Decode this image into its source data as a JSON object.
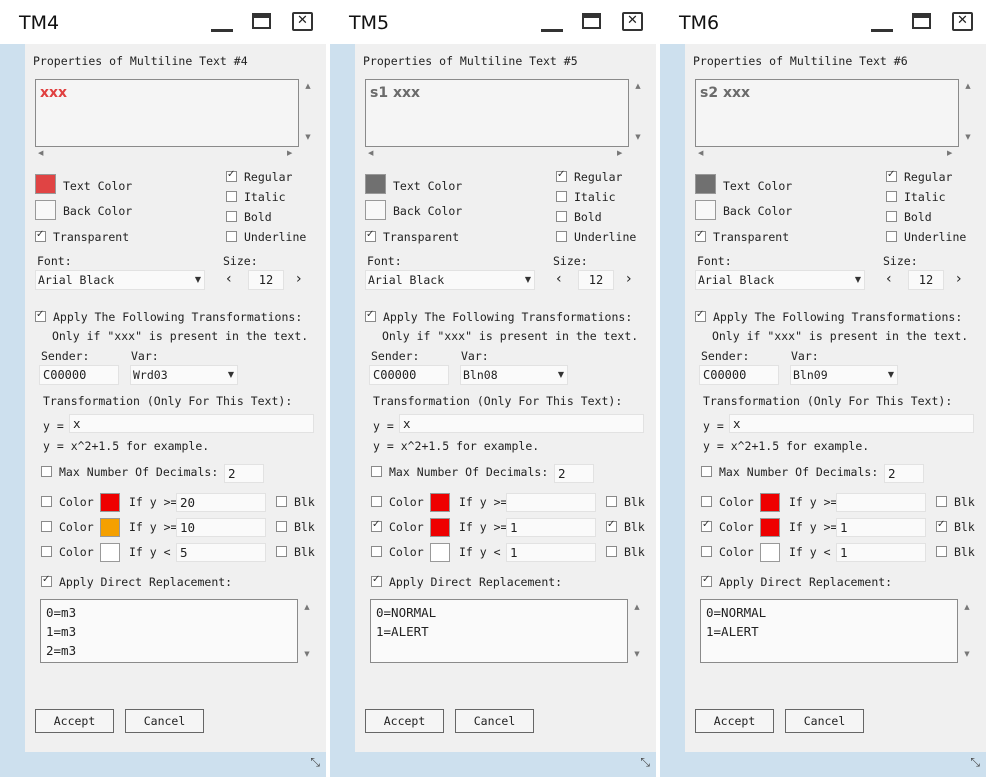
{
  "windows": [
    {
      "title": "TM4",
      "heading": "Properties of Multiline Text #4",
      "preview_text": "xxx",
      "preview_color": "#e04040",
      "text_color_label": "Text Color",
      "text_color": "#e04444",
      "back_color_label": "Back Color",
      "back_color": "#f8f8f8",
      "transparent_label": "Transparent",
      "transparent": true,
      "styles": [
        {
          "label": "Regular",
          "checked": true
        },
        {
          "label": "Italic",
          "checked": false
        },
        {
          "label": "Bold",
          "checked": false
        },
        {
          "label": "Underline",
          "checked": false
        }
      ],
      "font_label": "Font:",
      "font_value": "Arial Black",
      "size_label": "Size:",
      "size_value": "12",
      "size_prev": "‹",
      "size_next": "›",
      "apply_transform_label": "Apply The Following Transformations:",
      "apply_transform": true,
      "only_if_label": "Only if \"xxx\" is present in the text.",
      "sender_label": "Sender:",
      "sender_value": "C00000",
      "var_label": "Var:",
      "var_value": "Wrd03",
      "transformation_label": "Transformation (Only For This Text):",
      "y_label": "y =",
      "y_value": "x",
      "example_label": "y = x^2+1.5 for example.",
      "max_decimals_label": "Max Number Of Decimals:",
      "max_decimals": false,
      "max_decimals_value": "2",
      "color_rules": [
        {
          "color_label": "Color",
          "checked": false,
          "swatch": "#ee0000",
          "cond": "If y >=",
          "value": "20",
          "blk_label": "Blk",
          "blk": false
        },
        {
          "color_label": "Color",
          "checked": false,
          "swatch": "#f5a000",
          "cond": "If y >=",
          "value": "10",
          "blk_label": "Blk",
          "blk": false
        },
        {
          "color_label": "Color",
          "checked": false,
          "swatch": "#ffffff",
          "cond": "If y <",
          "value": "5",
          "blk_label": "Blk",
          "blk": false
        }
      ],
      "direct_replacement_label": "Apply Direct Replacement:",
      "direct_replacement": true,
      "replacement_lines": [
        "0=m3",
        "1=m3",
        "2=m3"
      ],
      "accept_label": "Accept",
      "cancel_label": "Cancel"
    },
    {
      "title": "TM5",
      "heading": "Properties of Multiline Text #5",
      "preview_text": "s1 xxx",
      "preview_color": "#6b6b6b",
      "text_color_label": "Text Color",
      "text_color": "#707070",
      "back_color_label": "Back Color",
      "back_color": "#f8f8f8",
      "transparent_label": "Transparent",
      "transparent": true,
      "styles": [
        {
          "label": "Regular",
          "checked": true
        },
        {
          "label": "Italic",
          "checked": false
        },
        {
          "label": "Bold",
          "checked": false
        },
        {
          "label": "Underline",
          "checked": false
        }
      ],
      "font_label": "Font:",
      "font_value": "Arial Black",
      "size_label": "Size:",
      "size_value": "12",
      "size_prev": "‹",
      "size_next": "›",
      "apply_transform_label": "Apply The Following Transformations:",
      "apply_transform": true,
      "only_if_label": "Only if \"xxx\" is present in the text.",
      "sender_label": "Sender:",
      "sender_value": "C00000",
      "var_label": "Var:",
      "var_value": "Bln08",
      "transformation_label": "Transformation (Only For This Text):",
      "y_label": "y =",
      "y_value": "x",
      "example_label": "y = x^2+1.5 for example.",
      "max_decimals_label": "Max Number Of Decimals:",
      "max_decimals": false,
      "max_decimals_value": "2",
      "color_rules": [
        {
          "color_label": "Color",
          "checked": false,
          "swatch": "#ee0000",
          "cond": "If y >=",
          "value": "",
          "blk_label": "Blk",
          "blk": false
        },
        {
          "color_label": "Color",
          "checked": true,
          "swatch": "#ee0000",
          "cond": "If y >=",
          "value": "1",
          "blk_label": "Blk",
          "blk": true
        },
        {
          "color_label": "Color",
          "checked": false,
          "swatch": "#ffffff",
          "cond": "If y <",
          "value": "1",
          "blk_label": "Blk",
          "blk": false
        }
      ],
      "direct_replacement_label": "Apply Direct Replacement:",
      "direct_replacement": true,
      "replacement_lines": [
        "0=NORMAL",
        "1=ALERT"
      ],
      "accept_label": "Accept",
      "cancel_label": "Cancel"
    },
    {
      "title": "TM6",
      "heading": "Properties of Multiline Text #6",
      "preview_text": "s2 xxx",
      "preview_color": "#6b6b6b",
      "text_color_label": "Text Color",
      "text_color": "#707070",
      "back_color_label": "Back Color",
      "back_color": "#f8f8f8",
      "transparent_label": "Transparent",
      "transparent": true,
      "styles": [
        {
          "label": "Regular",
          "checked": true
        },
        {
          "label": "Italic",
          "checked": false
        },
        {
          "label": "Bold",
          "checked": false
        },
        {
          "label": "Underline",
          "checked": false
        }
      ],
      "font_label": "Font:",
      "font_value": "Arial Black",
      "size_label": "Size:",
      "size_value": "12",
      "size_prev": "‹",
      "size_next": "›",
      "apply_transform_label": "Apply The Following Transformations:",
      "apply_transform": true,
      "only_if_label": "Only if \"xxx\" is present in the text.",
      "sender_label": "Sender:",
      "sender_value": "C00000",
      "var_label": "Var:",
      "var_value": "Bln09",
      "transformation_label": "Transformation (Only For This Text):",
      "y_label": "y =",
      "y_value": "x",
      "example_label": "y = x^2+1.5 for example.",
      "max_decimals_label": "Max Number Of Decimals:",
      "max_decimals": false,
      "max_decimals_value": "2",
      "color_rules": [
        {
          "color_label": "Color",
          "checked": false,
          "swatch": "#ee0000",
          "cond": "If y >=",
          "value": "",
          "blk_label": "Blk",
          "blk": false
        },
        {
          "color_label": "Color",
          "checked": true,
          "swatch": "#ee0000",
          "cond": "If y >=",
          "value": "1",
          "blk_label": "Blk",
          "blk": true
        },
        {
          "color_label": "Color",
          "checked": false,
          "swatch": "#ffffff",
          "cond": "If y <",
          "value": "1",
          "blk_label": "Blk",
          "blk": false
        }
      ],
      "direct_replacement_label": "Apply Direct Replacement:",
      "direct_replacement": true,
      "replacement_lines": [
        "0=NORMAL",
        "1=ALERT"
      ],
      "accept_label": "Accept",
      "cancel_label": "Cancel"
    }
  ]
}
